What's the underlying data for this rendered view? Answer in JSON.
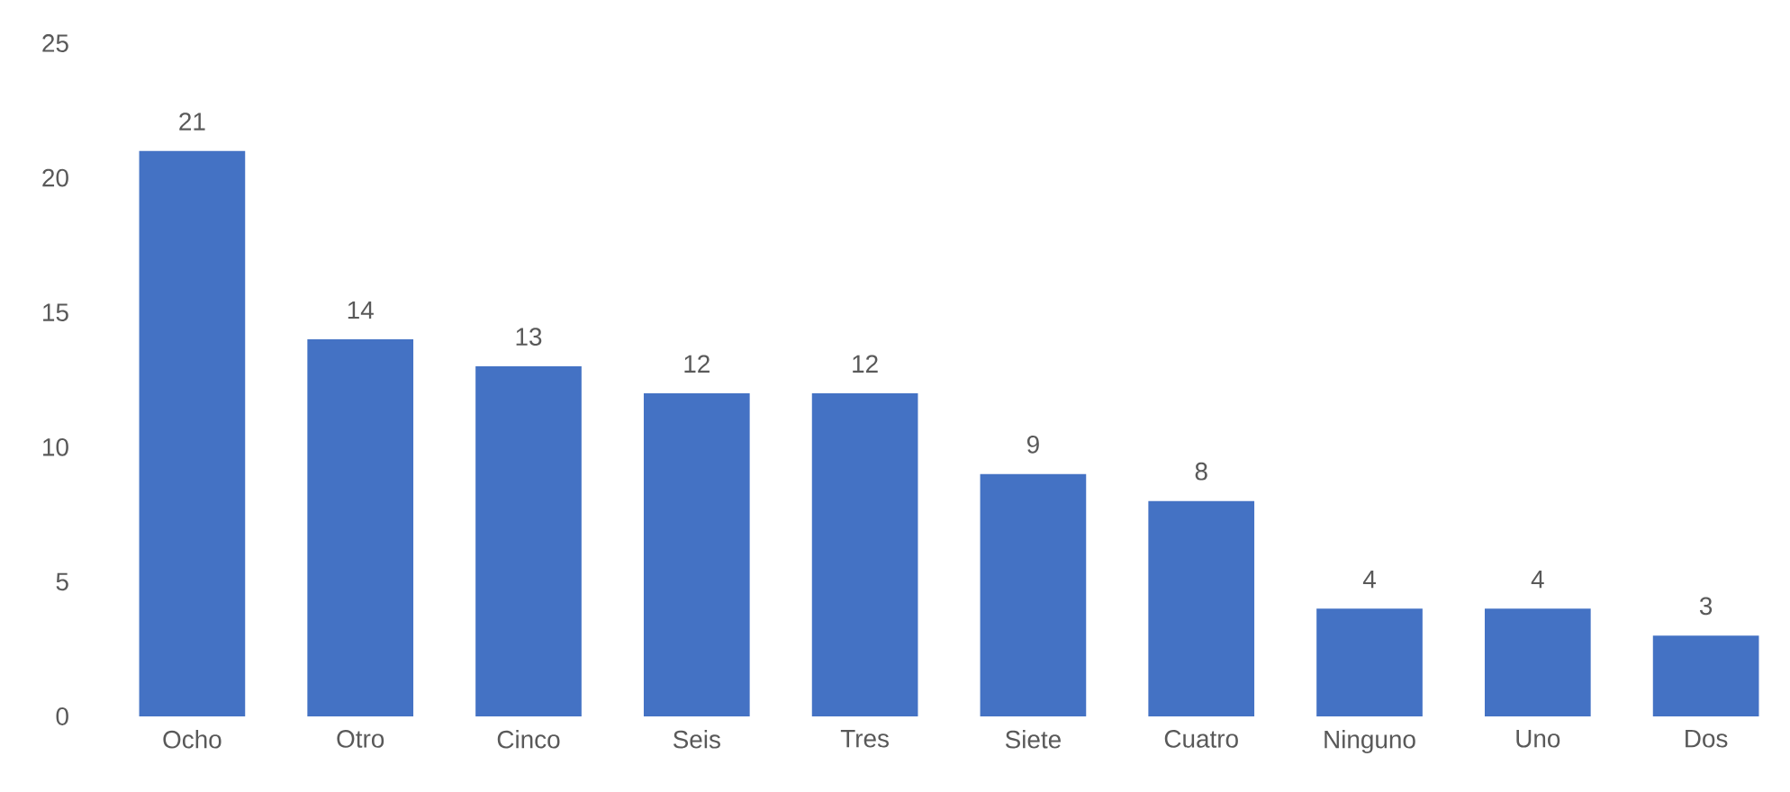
{
  "chart_data": {
    "type": "bar",
    "categories": [
      "Ocho",
      "Otro",
      "Cinco",
      "Seis",
      "Tres",
      "Siete",
      "Cuatro",
      "Ninguno",
      "Uno",
      "Dos"
    ],
    "values": [
      21,
      14,
      13,
      12,
      12,
      9,
      8,
      4,
      4,
      3
    ],
    "color": "#4472c4",
    "ylim": [
      0,
      25
    ],
    "yticks": [
      0,
      5,
      10,
      15,
      20,
      25
    ],
    "data_labels": true
  }
}
